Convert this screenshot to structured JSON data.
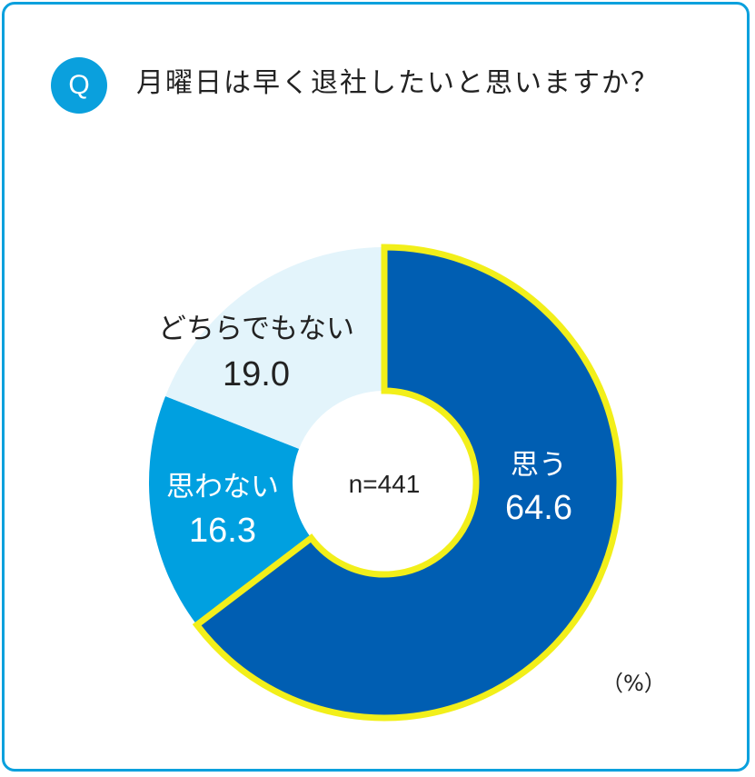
{
  "question": {
    "badge": "Q",
    "title": "月曜日は早く退社したいと思いますか？"
  },
  "unit_label": "（%）",
  "chart_data": {
    "type": "pie",
    "donut": true,
    "center_label": "n=441",
    "slices": [
      {
        "label": "思う",
        "value": 64.6,
        "value_text": "64.6",
        "color": "#005eb2",
        "text_color": "#ffffff",
        "highlighted": true
      },
      {
        "label": "思わない",
        "value": 16.3,
        "value_text": "16.3",
        "color": "#00a0e0",
        "text_color": "#ffffff",
        "highlighted": false
      },
      {
        "label": "どちらでもない",
        "value": 19.0,
        "value_text": "19.0",
        "color": "#e3f4fb",
        "text_color": "#222222",
        "highlighted": false
      }
    ],
    "highlight_color": "#f2ef1a"
  }
}
